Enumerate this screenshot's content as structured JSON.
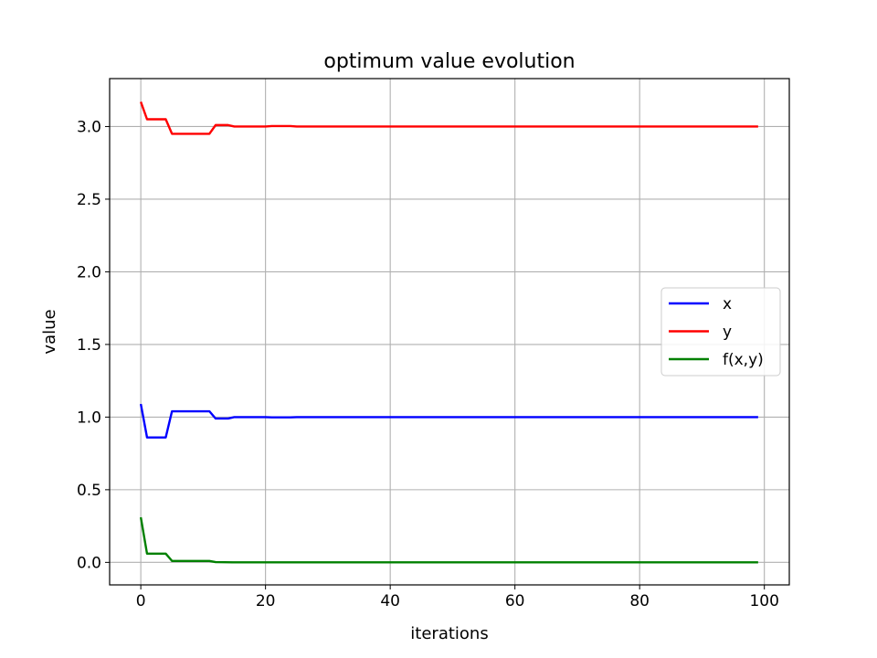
{
  "chart_data": {
    "type": "line",
    "title": "optimum value evolution",
    "xlabel": "iterations",
    "ylabel": "value",
    "xlim": [
      -5,
      104
    ],
    "ylim": [
      -0.155,
      3.33
    ],
    "x_ticks": [
      0,
      20,
      40,
      60,
      80,
      100
    ],
    "y_ticks": [
      0.0,
      0.5,
      1.0,
      1.5,
      2.0,
      2.5,
      3.0
    ],
    "y_tick_labels": [
      "0.0",
      "0.5",
      "1.0",
      "1.5",
      "2.0",
      "2.5",
      "3.0"
    ],
    "grid": true,
    "legend_position": "center-right",
    "series": [
      {
        "name": "x",
        "color": "#0000ff",
        "points": [
          [
            0,
            1.09
          ],
          [
            1,
            0.86
          ],
          [
            2,
            0.86
          ],
          [
            3,
            0.86
          ],
          [
            4,
            0.86
          ],
          [
            5,
            1.04
          ],
          [
            6,
            1.04
          ],
          [
            7,
            1.04
          ],
          [
            8,
            1.04
          ],
          [
            9,
            1.04
          ],
          [
            10,
            1.04
          ],
          [
            11,
            1.04
          ],
          [
            12,
            0.99
          ],
          [
            13,
            0.99
          ],
          [
            14,
            0.99
          ],
          [
            15,
            1.0
          ],
          [
            20,
            1.0
          ],
          [
            21,
            0.998
          ],
          [
            24,
            0.998
          ],
          [
            25,
            1.0
          ],
          [
            99,
            1.0
          ]
        ]
      },
      {
        "name": "y",
        "color": "#ff0000",
        "points": [
          [
            0,
            3.17
          ],
          [
            1,
            3.05
          ],
          [
            2,
            3.05
          ],
          [
            3,
            3.05
          ],
          [
            4,
            3.05
          ],
          [
            5,
            2.95
          ],
          [
            6,
            2.95
          ],
          [
            7,
            2.95
          ],
          [
            8,
            2.95
          ],
          [
            9,
            2.95
          ],
          [
            10,
            2.95
          ],
          [
            11,
            2.95
          ],
          [
            12,
            3.01
          ],
          [
            13,
            3.01
          ],
          [
            14,
            3.01
          ],
          [
            15,
            3.0
          ],
          [
            20,
            3.0
          ],
          [
            21,
            3.003
          ],
          [
            24,
            3.003
          ],
          [
            25,
            3.0
          ],
          [
            99,
            3.0
          ]
        ]
      },
      {
        "name": "f(x,y)",
        "color": "#008000",
        "points": [
          [
            0,
            0.31
          ],
          [
            1,
            0.06
          ],
          [
            2,
            0.06
          ],
          [
            3,
            0.06
          ],
          [
            4,
            0.06
          ],
          [
            5,
            0.01
          ],
          [
            6,
            0.01
          ],
          [
            7,
            0.01
          ],
          [
            8,
            0.01
          ],
          [
            9,
            0.01
          ],
          [
            10,
            0.01
          ],
          [
            11,
            0.01
          ],
          [
            12,
            0.002
          ],
          [
            15,
            0.0
          ],
          [
            99,
            0.0
          ]
        ]
      }
    ]
  }
}
